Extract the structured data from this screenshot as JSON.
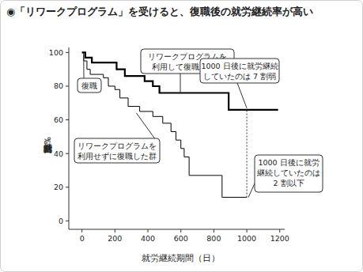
{
  "chart_data": {
    "type": "step",
    "title": "◉「リワークプログラム」を受けると、復職後の就労継続率が高い",
    "x_label": "就労継続期間（日）",
    "y_label": "就労継続割合（%）",
    "xlim": [
      -80,
      1230
    ],
    "xticks": [
      0,
      200,
      400,
      600,
      800,
      1000,
      1200
    ],
    "ylim": [
      -5,
      103
    ],
    "yticks": [
      0,
      20,
      40,
      60,
      80,
      100
    ],
    "grid": false,
    "reference_line_x": 1000,
    "series": [
      {
        "name": "リワークプログラムを\n利用して復職した群",
        "color": "#000000",
        "line_style": "thick",
        "x": [
          0,
          20,
          60,
          210,
          260,
          380,
          430,
          470,
          890,
          1190
        ],
        "values": [
          100,
          97,
          94,
          90,
          86,
          83,
          80,
          76,
          66,
          66
        ]
      },
      {
        "name": "リワークプログラムを\n利用せずに復職した群",
        "color": "#000000",
        "line_style": "thin",
        "x": [
          0,
          10,
          30,
          50,
          130,
          160,
          200,
          230,
          280,
          350,
          430,
          490,
          540,
          570,
          600,
          620,
          650,
          850,
          1000
        ],
        "values": [
          100,
          95,
          90,
          87,
          85,
          80,
          78,
          73,
          68,
          65,
          62,
          58,
          53,
          48,
          43,
          38,
          27,
          14,
          14
        ]
      }
    ],
    "annotations": [
      {
        "text": "復職"
      },
      {
        "text": "1000 日後に就労継続\nしていたのは 7 割弱"
      },
      {
        "text": "1000 日後に就労\n継続していたのは\n2 割以下"
      }
    ]
  }
}
